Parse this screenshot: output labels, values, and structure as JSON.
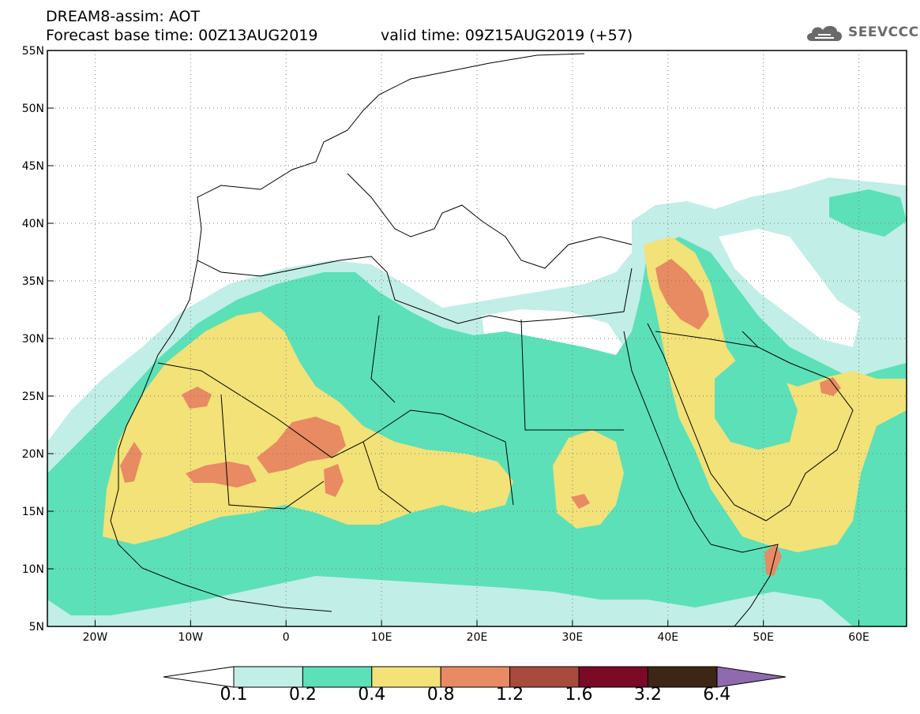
{
  "title": {
    "line1": "DREAM8-assim: AOT",
    "base_time": "Forecast base time: 00Z13AUG2019",
    "valid_time": "valid time: 09Z15AUG2019 (+57)"
  },
  "logo": {
    "text": "SEEVCCC",
    "icon": "cloud-logo-icon"
  },
  "map": {
    "lon_range": [
      -25,
      65
    ],
    "lat_range": [
      5,
      55
    ],
    "lon_ticks": [
      {
        "lon": -20,
        "label": "20W"
      },
      {
        "lon": -10,
        "label": "10W"
      },
      {
        "lon": 0,
        "label": "0"
      },
      {
        "lon": 10,
        "label": "10E"
      },
      {
        "lon": 20,
        "label": "20E"
      },
      {
        "lon": 30,
        "label": "30E"
      },
      {
        "lon": 40,
        "label": "40E"
      },
      {
        "lon": 50,
        "label": "50E"
      },
      {
        "lon": 60,
        "label": "60E"
      }
    ],
    "lat_ticks": [
      {
        "lat": 55,
        "label": "55N"
      },
      {
        "lat": 50,
        "label": "50N"
      },
      {
        "lat": 45,
        "label": "45N"
      },
      {
        "lat": 40,
        "label": "40N"
      },
      {
        "lat": 35,
        "label": "35N"
      },
      {
        "lat": 30,
        "label": "30N"
      },
      {
        "lat": 25,
        "label": "25N"
      },
      {
        "lat": 20,
        "label": "20N"
      },
      {
        "lat": 15,
        "label": "15N"
      },
      {
        "lat": 10,
        "label": "10N"
      },
      {
        "lat": 5,
        "label": "5N"
      }
    ],
    "gridlines": "dotted"
  },
  "colorbar": {
    "labels": [
      "0.1",
      "0.2",
      "0.4",
      "0.8",
      "1.2",
      "1.6",
      "3.2",
      "6.4"
    ],
    "colors": [
      "#c1eee6",
      "#5ce0b8",
      "#f2e278",
      "#e88a62",
      "#a84b3c",
      "#7a0a26",
      "#3c2616",
      "#8e6aae"
    ],
    "under_color": "#ffffff"
  },
  "palette": {
    "c1": "#c1eee6",
    "c2": "#5ce0b8",
    "c3": "#f2e278",
    "c4": "#e88a62",
    "c5": "#a84b3c"
  }
}
